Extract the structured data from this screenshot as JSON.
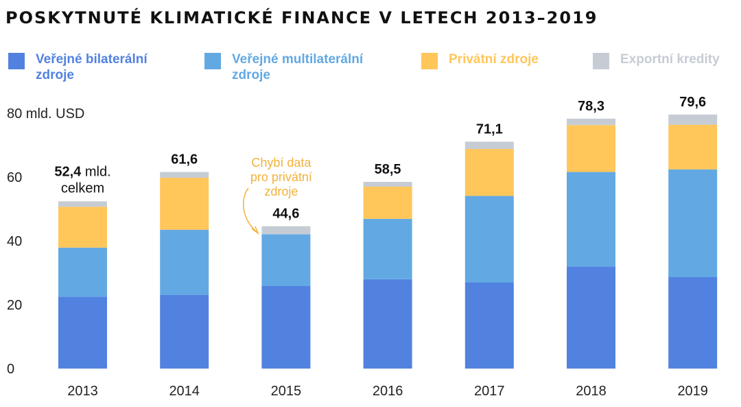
{
  "title": "POSKYTNUTÉ KLIMATICKÉ FINANCE V LETECH 2013–2019",
  "legend": [
    {
      "label_line1": "Veřejné bilaterální",
      "label_line2": "zdroje",
      "color": "#5182E0"
    },
    {
      "label_line1": "Veřejné multilaterální",
      "label_line2": "zdroje",
      "color": "#62A9E3"
    },
    {
      "label_line1": "Privátní zdroje",
      "label_line2": "",
      "color": "#FFC65A"
    },
    {
      "label_line1": "Exportní kredity",
      "label_line2": "",
      "color": "#C6CCD4"
    }
  ],
  "chart_data": {
    "type": "bar",
    "stacked": true,
    "categories": [
      "2013",
      "2014",
      "2015",
      "2016",
      "2017",
      "2018",
      "2019"
    ],
    "series": [
      {
        "name": "Veřejné bilaterální zdroje",
        "values": [
          22.5,
          23.1,
          25.9,
          28.0,
          27.0,
          32.0,
          28.7
        ]
      },
      {
        "name": "Veřejné multilaterální zdroje",
        "values": [
          15.4,
          20.4,
          16.2,
          18.9,
          27.1,
          29.6,
          33.7
        ]
      },
      {
        "name": "Privátní zdroje",
        "values": [
          12.8,
          16.3,
          0,
          10.1,
          14.7,
          14.7,
          14.0
        ]
      },
      {
        "name": "Exportní kredity",
        "values": [
          1.7,
          1.8,
          2.5,
          1.5,
          2.3,
          2.0,
          3.2
        ]
      }
    ],
    "totals": [
      "52,4",
      "61,6",
      "44,6",
      "58,5",
      "71,1",
      "78,3",
      "79,6"
    ],
    "first_total_suffix": " mld.",
    "first_total_line2": "celkem",
    "y_ticks": [
      "0",
      "20",
      "40",
      "60",
      "80"
    ],
    "ylabel": "80 mld. USD",
    "ylim": [
      0,
      80
    ],
    "grid": false,
    "annotation": {
      "category": "2015",
      "lines": [
        "Chybí data",
        "pro privátní",
        "zdroje"
      ],
      "color": "#F2B13A"
    }
  }
}
